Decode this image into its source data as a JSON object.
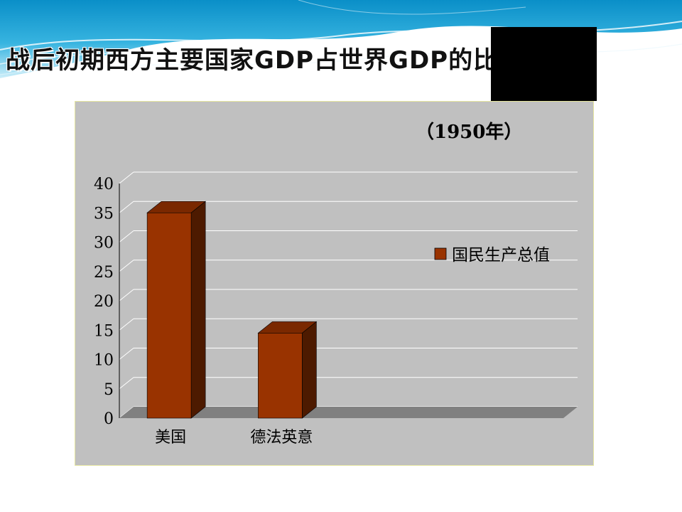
{
  "slide": {
    "title": "战后初期西方主要国家GDP占世界GDP的比重"
  },
  "colors": {
    "bar_front": "#993300",
    "bar_top": "#7a2800",
    "bar_side": "#4d1a00",
    "panel": "#c0c0c0",
    "floor": "#808080",
    "gridline": "#ffffff"
  },
  "chart_data": {
    "type": "bar",
    "subtitle": "（1950年）",
    "categories": [
      "美国",
      "德法英意",
      "",
      ""
    ],
    "series": [
      {
        "name": "国民生产总值",
        "values": [
          35,
          14.5,
          null,
          null
        ]
      }
    ],
    "ylim": [
      0,
      40
    ],
    "yticks": [
      "0",
      "5",
      "10",
      "15",
      "20",
      "25",
      "30",
      "35",
      "40"
    ],
    "grid": true,
    "legend_position": "right",
    "three_d": true
  }
}
